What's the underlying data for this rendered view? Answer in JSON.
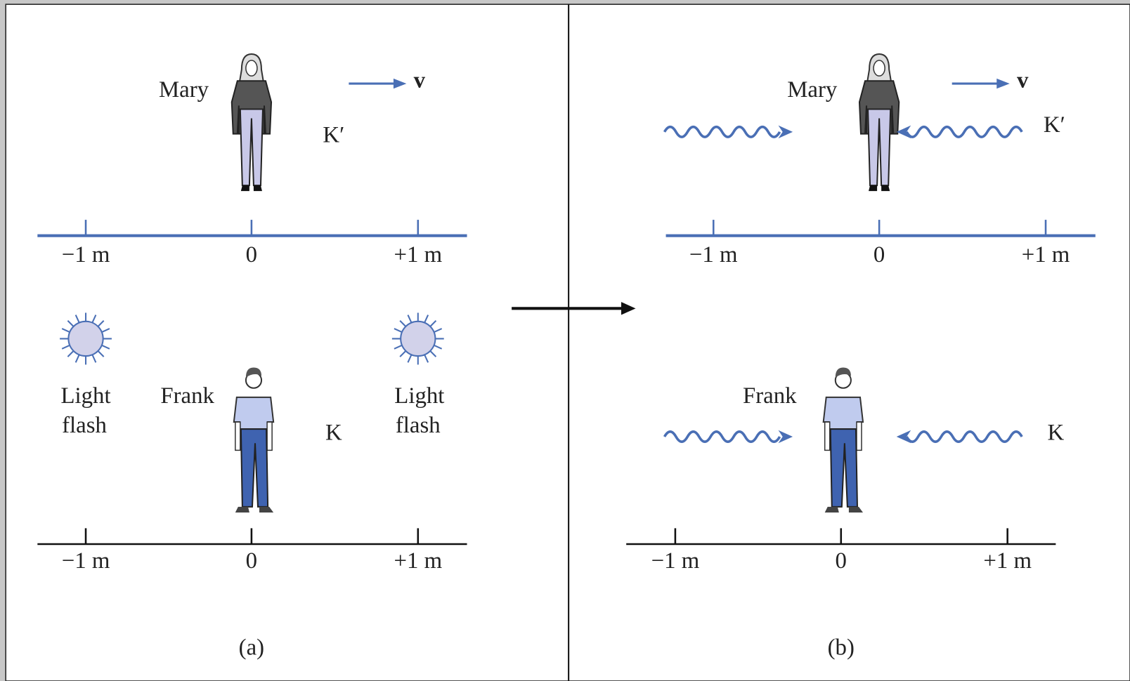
{
  "panel_a": {
    "caption": "(a)",
    "top": {
      "observer": "Mary",
      "velocity": "v",
      "frame": "K′",
      "axis_labels": [
        "−1 m",
        "0",
        "+1 m"
      ]
    },
    "bottom": {
      "observer": "Frank",
      "frame": "K",
      "axis_labels": [
        "−1 m",
        "0",
        "+1 m"
      ],
      "flash_labels": [
        [
          "Light",
          "flash"
        ],
        [
          "Light",
          "flash"
        ]
      ]
    }
  },
  "panel_b": {
    "caption": "(b)",
    "top": {
      "observer": "Mary",
      "velocity": "v",
      "frame": "K′",
      "axis_labels": [
        "−1 m",
        "0",
        "+1 m"
      ]
    },
    "bottom": {
      "observer": "Frank",
      "frame": "K",
      "axis_labels": [
        "−1 m",
        "0",
        "+1 m"
      ]
    }
  }
}
